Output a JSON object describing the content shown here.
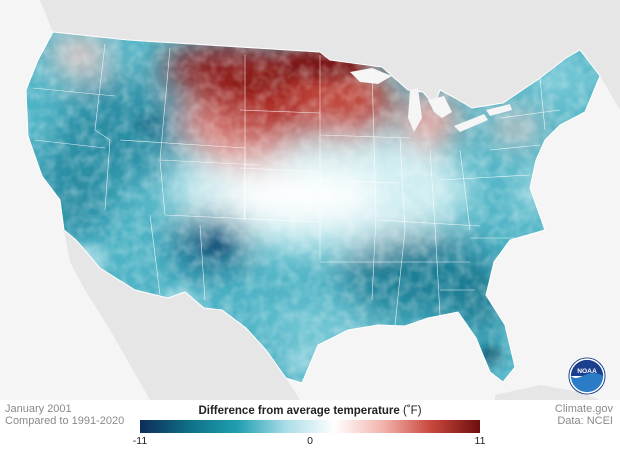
{
  "map": {
    "period": "January 2001",
    "baseline": "Compared to 1991-2020",
    "legend_title": "Difference from average temperature",
    "legend_unit": "(˚F)",
    "scale_min": "-11",
    "scale_mid": "0",
    "scale_max": "11",
    "scale_colors": [
      "#0d2c5a",
      "#0f6f86",
      "#1f9eb0",
      "#a9dde8",
      "#ffffff",
      "#f2b4ad",
      "#c8473c",
      "#6e0e0e"
    ],
    "credit_site": "Climate.gov",
    "credit_data": "Data: NCEI",
    "logo": "noaa-logo",
    "land_color": "#e6e6e6",
    "water_color": "#f5f5f5"
  }
}
